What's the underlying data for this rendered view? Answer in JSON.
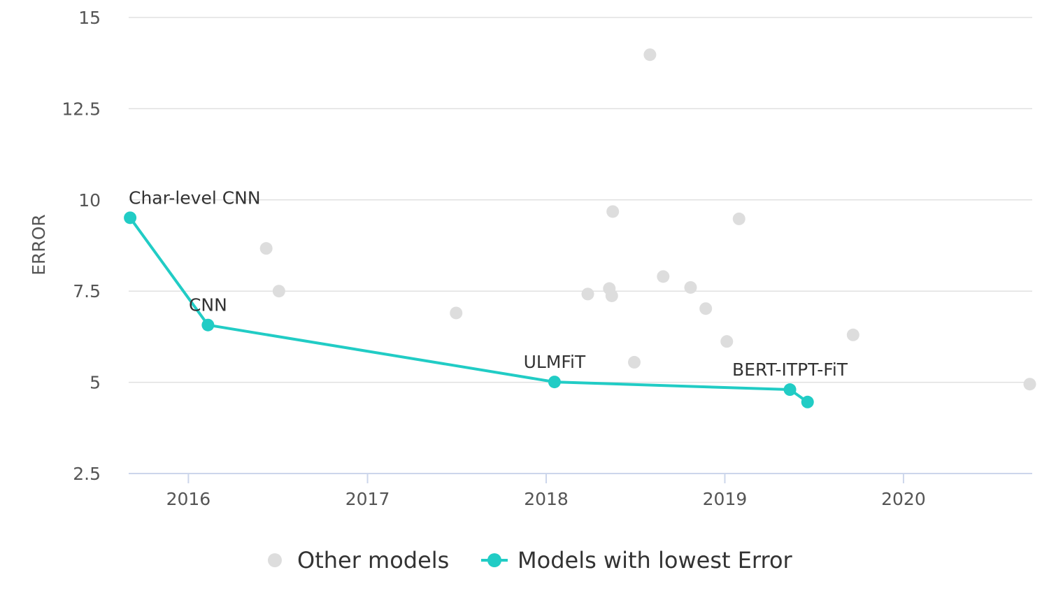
{
  "chart_data": {
    "type": "scatter",
    "ylabel": "ERROR",
    "xlabel": "",
    "title": "",
    "ylim": [
      2.5,
      15
    ],
    "xlim": [
      "2015-09-01",
      "2020-09-20"
    ],
    "y_ticks": [
      "2.5",
      "5",
      "7.5",
      "10",
      "12.5",
      "15"
    ],
    "x_ticks": [
      "2016",
      "2017",
      "2018",
      "2019",
      "2020"
    ],
    "grid": true,
    "legend_position": "bottom",
    "series": [
      {
        "name": "Other models",
        "type": "scatter",
        "color": "#dddddd",
        "points": [
          {
            "x": "2016-06-08",
            "y": 8.67
          },
          {
            "x": "2016-07-04",
            "y": 7.5
          },
          {
            "x": "2017-07-01",
            "y": 6.9
          },
          {
            "x": "2018-03-27",
            "y": 7.42
          },
          {
            "x": "2018-05-10",
            "y": 7.57
          },
          {
            "x": "2018-05-15",
            "y": 7.37
          },
          {
            "x": "2018-05-17",
            "y": 9.68
          },
          {
            "x": "2018-06-30",
            "y": 5.55
          },
          {
            "x": "2018-08-01",
            "y": 13.98
          },
          {
            "x": "2018-08-28",
            "y": 7.9
          },
          {
            "x": "2018-10-23",
            "y": 7.6
          },
          {
            "x": "2018-11-23",
            "y": 7.02
          },
          {
            "x": "2019-01-05",
            "y": 6.12
          },
          {
            "x": "2019-01-30",
            "y": 9.48
          },
          {
            "x": "2019-09-20",
            "y": 6.3
          },
          {
            "x": "2020-09-15",
            "y": 4.95
          }
        ]
      },
      {
        "name": "Models with lowest Error",
        "type": "line",
        "color": "#21ccc5",
        "points": [
          {
            "x": "2015-09-04",
            "y": 9.51,
            "label": "Char-level CNN"
          },
          {
            "x": "2016-02-10",
            "y": 6.57,
            "label": "CNN"
          },
          {
            "x": "2018-01-18",
            "y": 5.01,
            "label": "ULMFiT"
          },
          {
            "x": "2019-05-14",
            "y": 4.8,
            "label": "BERT-ITPT-FiT"
          },
          {
            "x": "2019-06-19",
            "y": 4.46,
            "label": ""
          }
        ]
      }
    ]
  }
}
